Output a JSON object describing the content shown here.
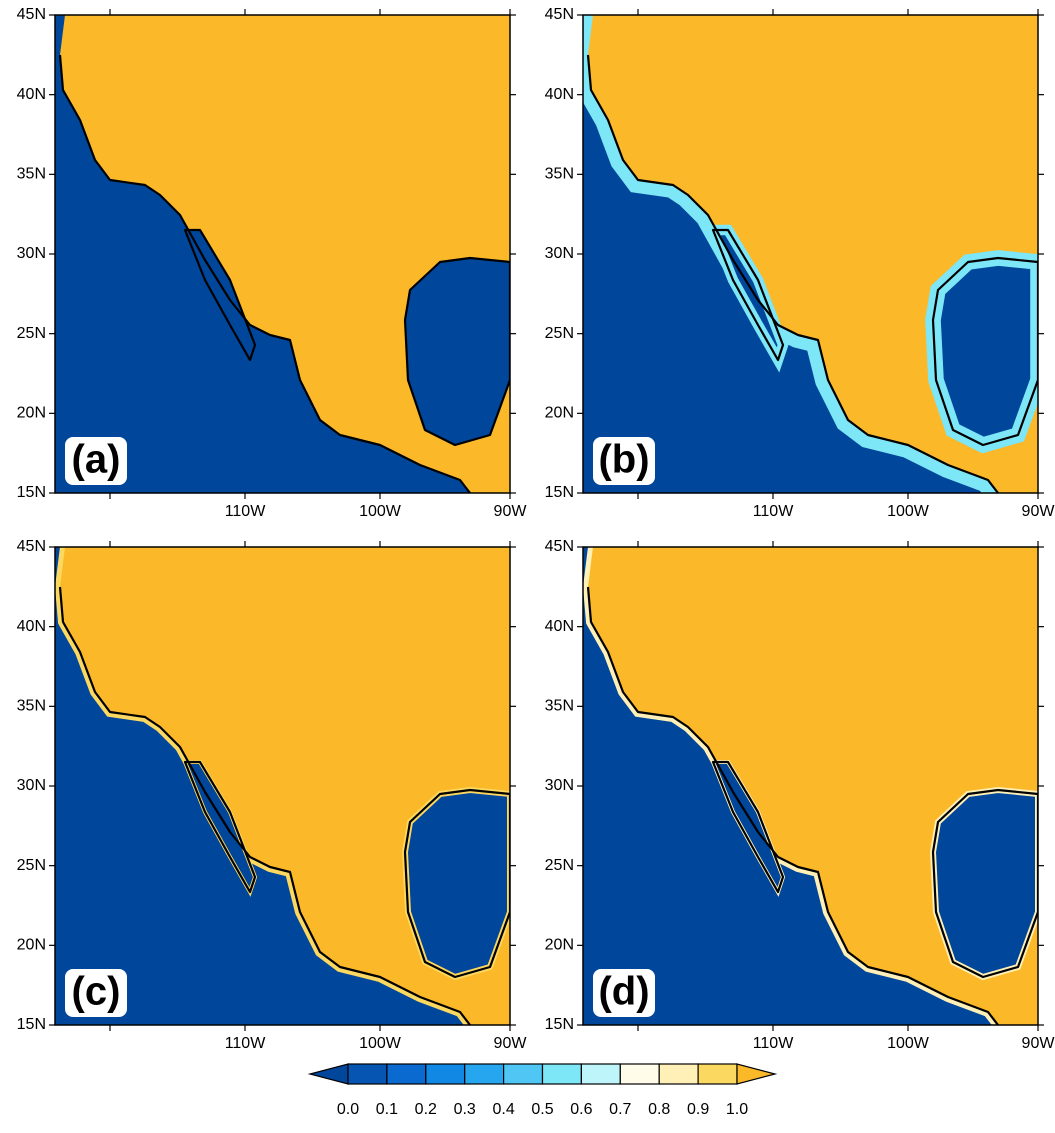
{
  "panels": [
    {
      "label": "(a)"
    },
    {
      "label": "(b)"
    },
    {
      "label": "(c)"
    },
    {
      "label": "(d)"
    }
  ],
  "axes": {
    "lat_labels": [
      "45N",
      "40N",
      "35N",
      "30N",
      "25N",
      "20N",
      "15N"
    ],
    "lon_labels": [
      "110W",
      "100W",
      "90W"
    ]
  },
  "colorbar": {
    "ticks": [
      "0.0",
      "0.1",
      "0.2",
      "0.3",
      "0.4",
      "0.5",
      "0.6",
      "0.7",
      "0.8",
      "0.9",
      "1.0"
    ],
    "colors": [
      "#00469b",
      "#0655b3",
      "#0a6acf",
      "#1088e4",
      "#25a6ef",
      "#4fc6f3",
      "#7de6f7",
      "#bdf5fa",
      "#fffde9",
      "#fff0b8",
      "#fbd860",
      "#fbb829"
    ]
  }
}
